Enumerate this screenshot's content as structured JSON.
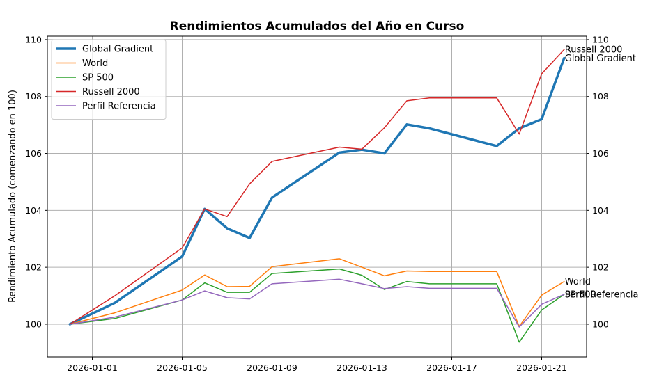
{
  "chart_data": {
    "type": "line",
    "title": "Rendimientos Acumulados del Año en Curso",
    "ylabel": "Rendimiento Acumulado (comenzando en 100)",
    "xlabel": "",
    "x": [
      "2025-12-31",
      "2026-01-02",
      "2026-01-05",
      "2026-01-06",
      "2026-01-07",
      "2026-01-08",
      "2026-01-09",
      "2026-01-12",
      "2026-01-13",
      "2026-01-14",
      "2026-01-15",
      "2026-01-16",
      "2026-01-19",
      "2026-01-20",
      "2026-01-21",
      "2026-01-22"
    ],
    "xlim": [
      "2025-12-30",
      "2026-01-23"
    ],
    "ylim": [
      98.85,
      110.12
    ],
    "x_ticks": [
      "2026-01-01",
      "2026-01-05",
      "2026-01-09",
      "2026-01-13",
      "2026-01-17",
      "2026-01-21"
    ],
    "y_ticks": [
      100,
      102,
      104,
      106,
      108,
      110
    ],
    "y_ticks_right": [
      100,
      102,
      104,
      106,
      108,
      110
    ],
    "grid": true,
    "legend_position": "top-left",
    "series": [
      {
        "name": "Global Gradient",
        "color": "#1f77b4",
        "width": 3.5,
        "end_label": "Global Gradient",
        "values": [
          100.0,
          100.75,
          102.38,
          104.05,
          103.37,
          103.03,
          104.45,
          106.03,
          106.13,
          106.0,
          107.02,
          106.88,
          106.26,
          106.88,
          107.2,
          109.35
        ]
      },
      {
        "name": "World",
        "color": "#ff7f0e",
        "width": 1.5,
        "end_label": "World",
        "values": [
          100.0,
          100.4,
          101.2,
          101.73,
          101.32,
          101.33,
          102.02,
          102.3,
          102.0,
          101.7,
          101.87,
          101.85,
          101.85,
          99.92,
          101.02,
          101.5
        ]
      },
      {
        "name": "SP 500",
        "color": "#2ca02c",
        "width": 1.5,
        "end_label": "SP 500",
        "values": [
          100.0,
          100.2,
          100.85,
          101.45,
          101.12,
          101.12,
          101.78,
          101.94,
          101.72,
          101.22,
          101.5,
          101.42,
          101.42,
          99.37,
          100.5,
          101.05
        ]
      },
      {
        "name": "Russell 2000",
        "color": "#d62728",
        "width": 1.5,
        "end_label": "Russell 2000",
        "values": [
          100.0,
          101.0,
          102.68,
          104.05,
          103.78,
          104.93,
          105.72,
          106.22,
          106.15,
          106.9,
          107.85,
          107.95,
          107.95,
          106.68,
          108.8,
          109.65
        ]
      },
      {
        "name": "Perfil Referencia",
        "color": "#9467bd",
        "width": 1.5,
        "end_label": "Perfil Referencia",
        "values": [
          100.0,
          100.25,
          100.85,
          101.17,
          100.93,
          100.89,
          101.42,
          101.58,
          101.42,
          101.25,
          101.32,
          101.26,
          101.26,
          99.9,
          100.7,
          101.05
        ]
      }
    ]
  }
}
